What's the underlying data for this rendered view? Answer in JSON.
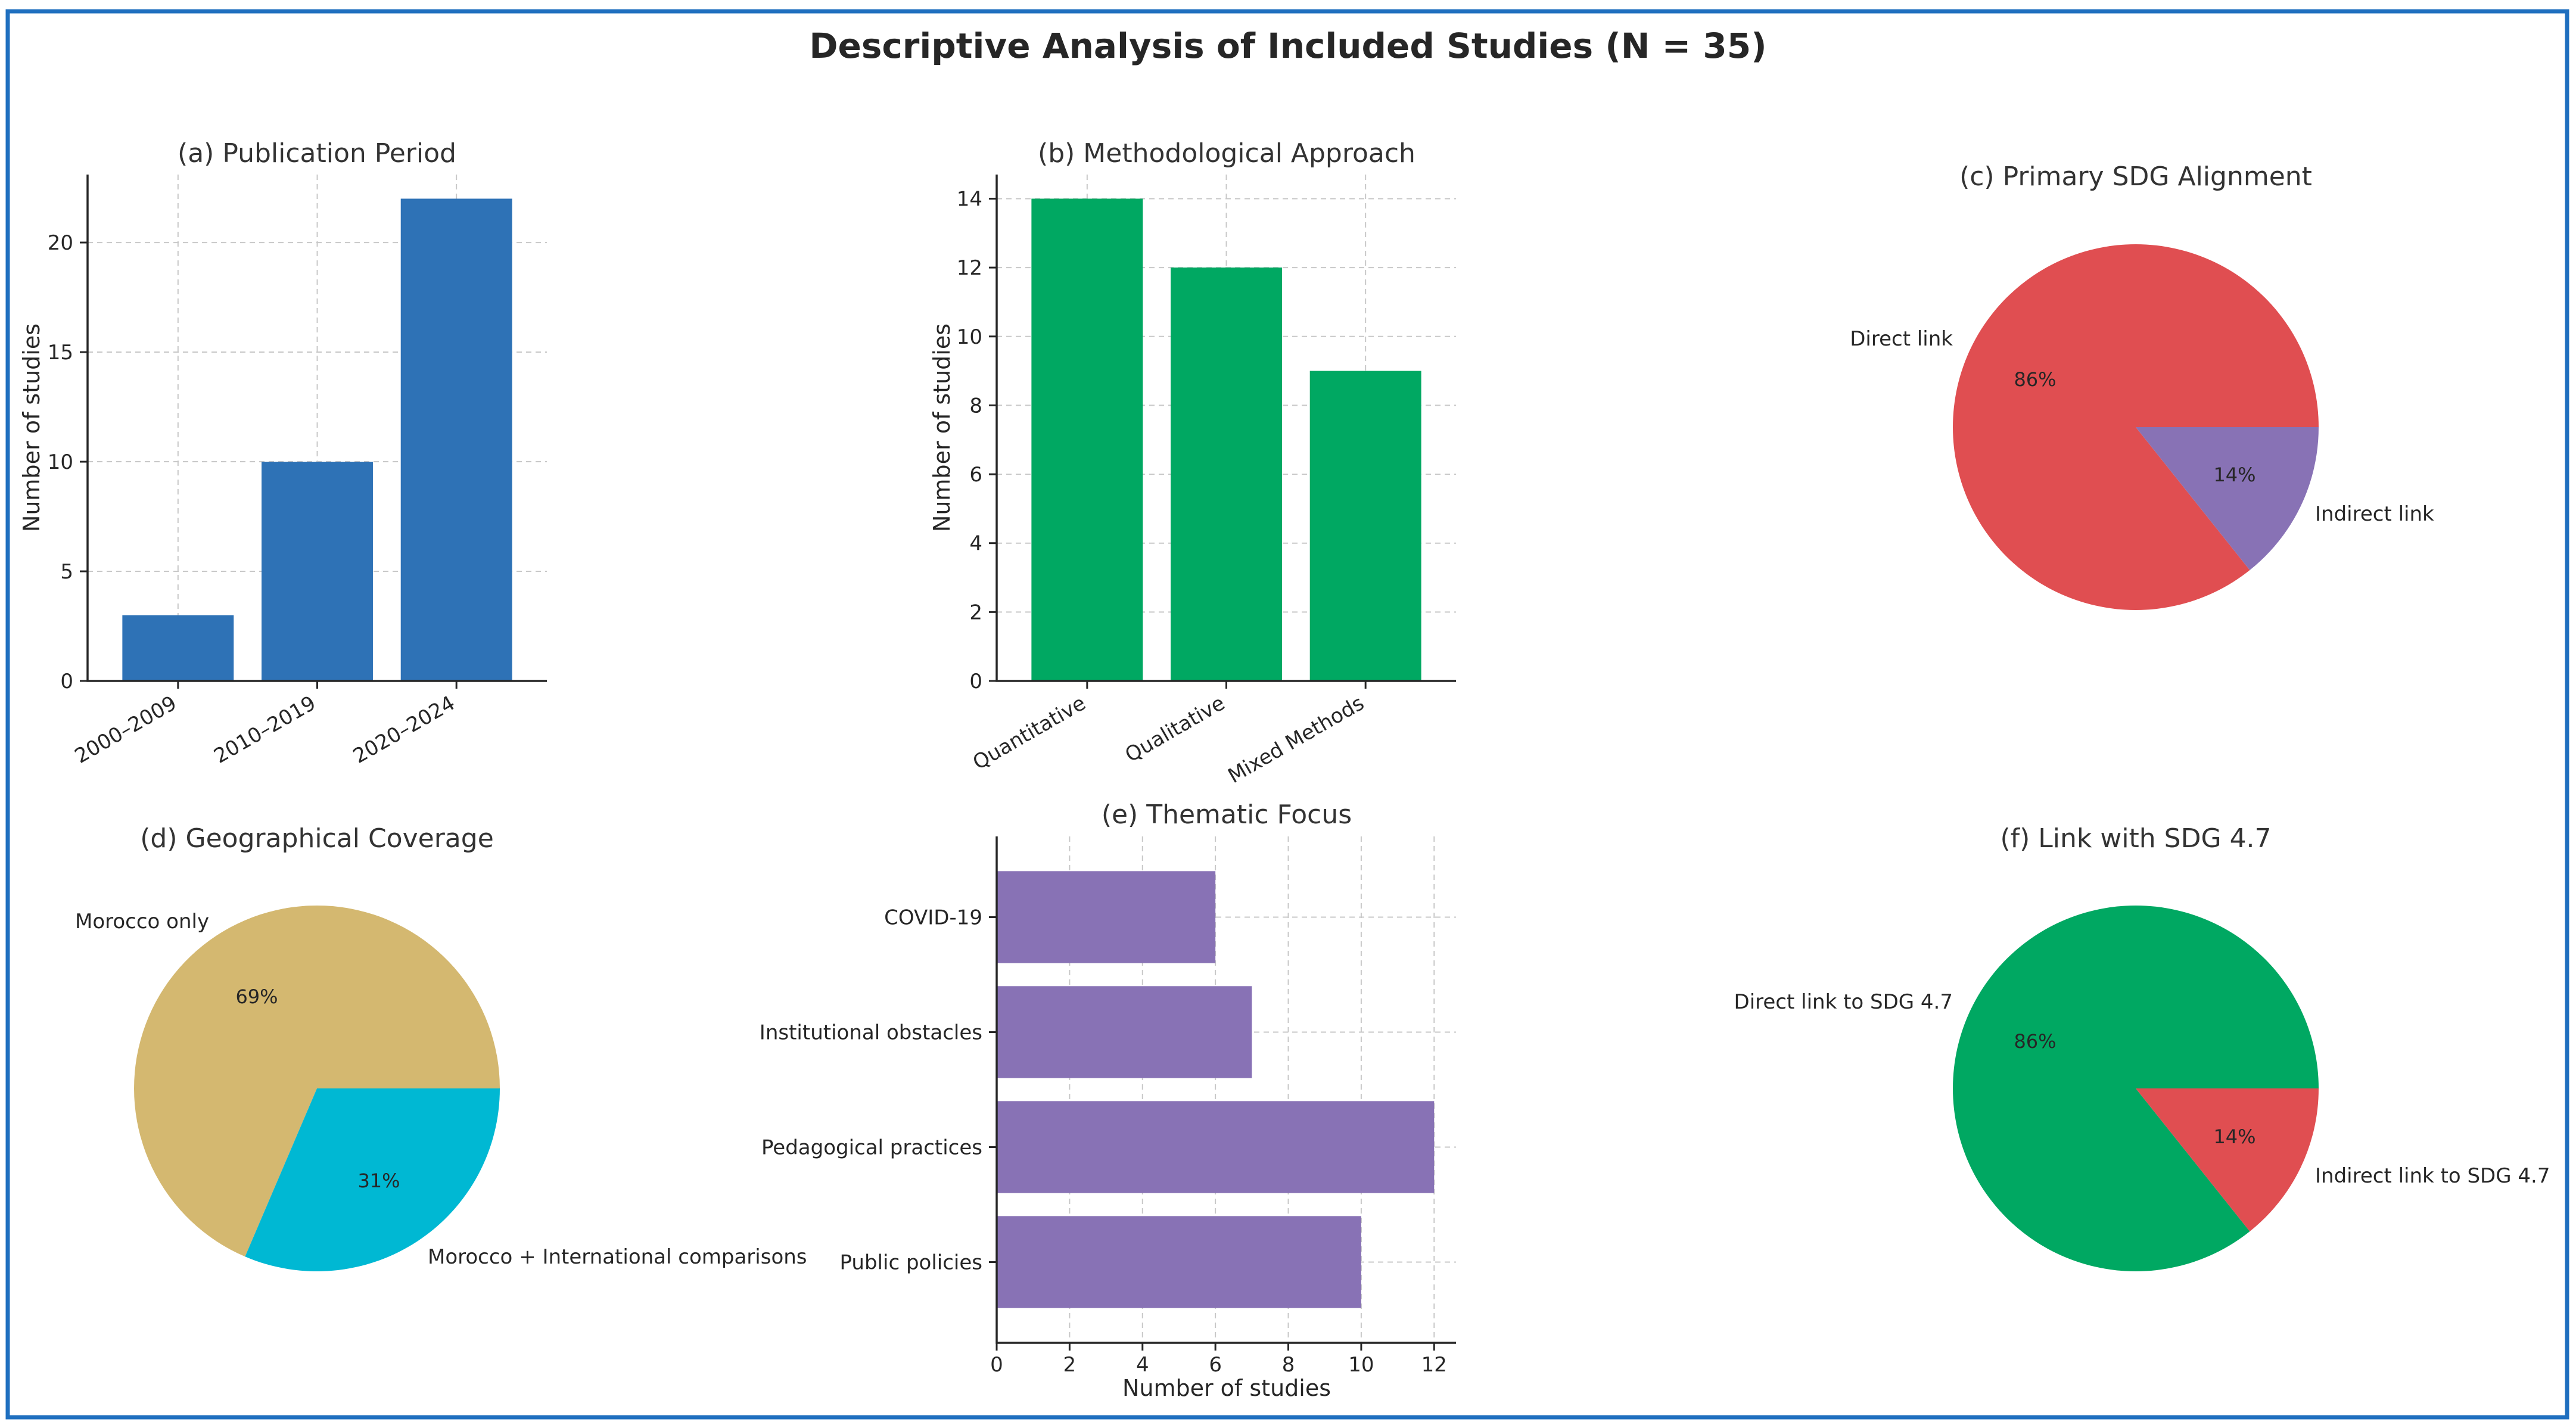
{
  "figure_title": "Descriptive Analysis of Included Studies (N = 35)",
  "colors": {
    "border": "#1f6fbf",
    "blue": "#2e72b6",
    "green": "#00a862",
    "red": "#e04e51",
    "purple": "#8872b5",
    "sand": "#d4b870",
    "cyan": "#00b8d3"
  },
  "chart_data": [
    {
      "id": "a",
      "type": "bar",
      "title": "(a) Publication Period",
      "categories": [
        "2000–2009",
        "2010–2019",
        "2020–2024"
      ],
      "values": [
        3,
        10,
        22
      ],
      "xlabel": "",
      "ylabel": "Number of studies",
      "ylim": [
        0,
        23.1
      ],
      "yticks": [
        0,
        5,
        10,
        15,
        20
      ],
      "grid": true,
      "color": "#2e72b6"
    },
    {
      "id": "b",
      "type": "bar",
      "title": "(b) Methodological Approach",
      "categories": [
        "Quantitative",
        "Qualitative",
        "Mixed Methods"
      ],
      "values": [
        14,
        12,
        9
      ],
      "xlabel": "",
      "ylabel": "Number of studies",
      "ylim": [
        0,
        14.7
      ],
      "yticks": [
        0,
        2,
        4,
        6,
        8,
        10,
        12,
        14
      ],
      "grid": true,
      "color": "#00a862"
    },
    {
      "id": "c",
      "type": "pie",
      "title": "(c) Primary SDG Alignment",
      "labels": [
        "Direct link",
        "Indirect link"
      ],
      "values": [
        30,
        5
      ],
      "pct_labels": [
        "86%",
        "14%"
      ],
      "colors": [
        "#e04e51",
        "#8872b5"
      ]
    },
    {
      "id": "d",
      "type": "pie",
      "title": "(d) Geographical Coverage",
      "labels": [
        "Morocco only",
        "Morocco + International comparisons"
      ],
      "values": [
        24,
        11
      ],
      "pct_labels": [
        "69%",
        "31%"
      ],
      "colors": [
        "#d4b870",
        "#00b8d3"
      ]
    },
    {
      "id": "e",
      "type": "bar",
      "orientation": "horizontal",
      "title": "(e) Thematic Focus",
      "categories": [
        "Public policies",
        "Pedagogical practices",
        "Institutional obstacles",
        "COVID-19"
      ],
      "values": [
        10,
        12,
        7,
        6
      ],
      "xlabel": "Number of studies",
      "ylabel": "",
      "xlim": [
        0,
        12.6
      ],
      "xticks": [
        0,
        2,
        4,
        6,
        8,
        10,
        12
      ],
      "grid": true,
      "color": "#8872b5"
    },
    {
      "id": "f",
      "type": "pie",
      "title": "(f) Link with SDG 4.7",
      "labels": [
        "Direct link to SDG 4.7",
        "Indirect link to SDG 4.7"
      ],
      "values": [
        30,
        5
      ],
      "pct_labels": [
        "86%",
        "14%"
      ],
      "colors": [
        "#00a862",
        "#e04e51"
      ]
    }
  ]
}
